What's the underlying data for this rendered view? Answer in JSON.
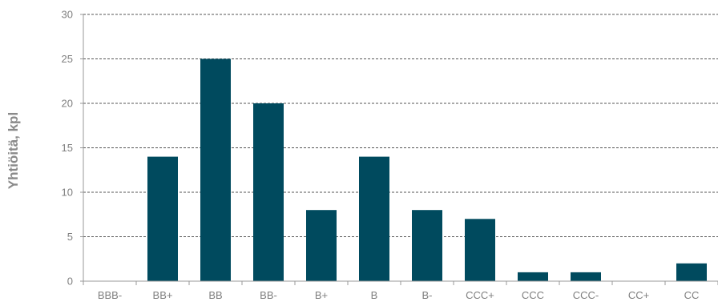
{
  "colors": {
    "bar": "#004a5e",
    "grid": "#555555",
    "axis": "#999999",
    "text": "#7f7f7f"
  },
  "chart_data": {
    "type": "bar",
    "title": "",
    "xlabel": "",
    "ylabel": "Yhtiöitä, kpl",
    "categories": [
      "BBB-",
      "BB+",
      "BB",
      "BB-",
      "B+",
      "B",
      "B-",
      "CCC+",
      "CCC",
      "CCC-",
      "CC+",
      "CC"
    ],
    "values": [
      0,
      14,
      25,
      20,
      8,
      14,
      8,
      7,
      1,
      1,
      0,
      2
    ],
    "ylim": [
      0,
      30
    ],
    "yticks": [
      0,
      5,
      10,
      15,
      20,
      25,
      30
    ],
    "grid": true,
    "grid_style": "dashed"
  }
}
